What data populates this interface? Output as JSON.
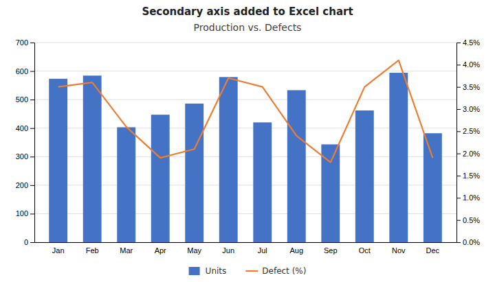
{
  "chart_data": {
    "type": "bar",
    "title": "Secondary axis added to Excel chart",
    "subtitle": "Production vs. Defects",
    "categories": [
      "Jan",
      "Feb",
      "Mar",
      "Apr",
      "May",
      "Jun",
      "Jul",
      "Aug",
      "Sep",
      "Oct",
      "Nov",
      "Dec"
    ],
    "series": [
      {
        "name": "Units",
        "type": "bar",
        "color": "#4472C4",
        "values": [
          573,
          584,
          403,
          447,
          486,
          579,
          420,
          533,
          343,
          462,
          594,
          382
        ]
      },
      {
        "name": "Defect (%)",
        "type": "line",
        "color": "#ED7D31",
        "axis": "y2",
        "values": [
          3.5,
          3.6,
          2.6,
          1.9,
          2.1,
          3.7,
          3.5,
          2.4,
          1.8,
          3.5,
          4.1,
          1.9
        ]
      }
    ],
    "ylim": [
      0,
      700
    ],
    "yticks": [
      0,
      100,
      200,
      300,
      400,
      500,
      600,
      700
    ],
    "y2lim": [
      0.0,
      4.5
    ],
    "y2ticks": [
      {
        "value": 0.0,
        "label": "0.0%"
      },
      {
        "value": 0.5,
        "label": "0.5%"
      },
      {
        "value": 1.0,
        "label": "1.0%"
      },
      {
        "value": 1.5,
        "label": "1.5%"
      },
      {
        "value": 2.0,
        "label": "2.0%"
      },
      {
        "value": 2.5,
        "label": "2.5%"
      },
      {
        "value": 3.0,
        "label": "3.0%"
      },
      {
        "value": 3.5,
        "label": "3.5%"
      },
      {
        "value": 4.0,
        "label": "4.0%"
      },
      {
        "value": 4.5,
        "label": "4.5%"
      }
    ],
    "grid": true,
    "legend": "bottom"
  }
}
